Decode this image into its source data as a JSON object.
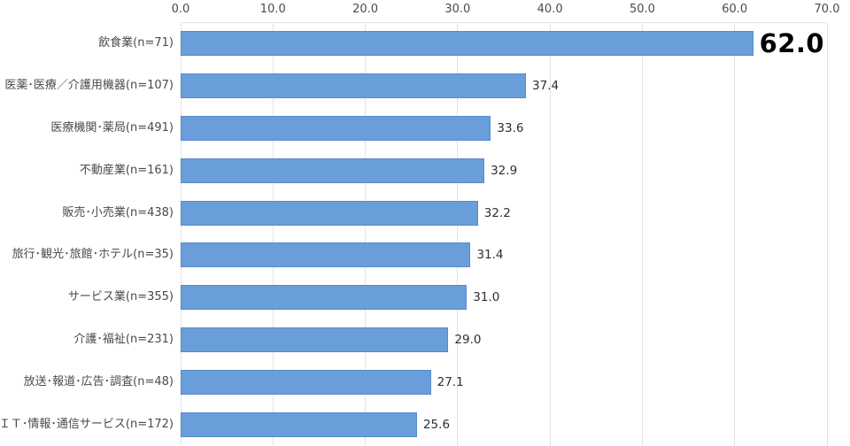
{
  "chart_data": {
    "type": "bar",
    "orientation": "horizontal",
    "title": "",
    "categories": [
      "飲食業(n=71)",
      "医薬･医療／介護用機器(n=107)",
      "医療機関･薬局(n=491)",
      "不動産業(n=161)",
      "販売･小売業(n=438)",
      "旅行･観光･旅館･ホテル(n=35)",
      "サービス業(n=355)",
      "介護･福祉(n=231)",
      "放送･報道･広告･調査(n=48)",
      "ＩＴ･情報･通信サービス(n=172)"
    ],
    "values": [
      62.0,
      37.4,
      33.6,
      32.9,
      32.2,
      31.4,
      31.0,
      29.0,
      27.1,
      25.6
    ],
    "value_labels": [
      "62.0",
      "37.4",
      "33.6",
      "32.9",
      "32.2",
      "31.4",
      "31.0",
      "29.0",
      "27.1",
      "25.6"
    ],
    "emphasized_index": 0,
    "x_axis": {
      "position": "top",
      "min": 0,
      "max": 70,
      "tick_step": 10,
      "tick_labels": [
        "0.0",
        "10.0",
        "20.0",
        "30.0",
        "40.0",
        "50.0",
        "60.0",
        "70.0"
      ]
    },
    "grid": "vertical",
    "colors": {
      "bar_fill": "#6A9EDB",
      "bar_border": "#5589CE",
      "gridline": "#E3E3E3",
      "axis_text": "#4A4A4A",
      "category_text": "#4A4A4A",
      "value_text": "#2E2E2E",
      "emphasis_text": "#000000",
      "background": "#FFFFFF"
    }
  }
}
